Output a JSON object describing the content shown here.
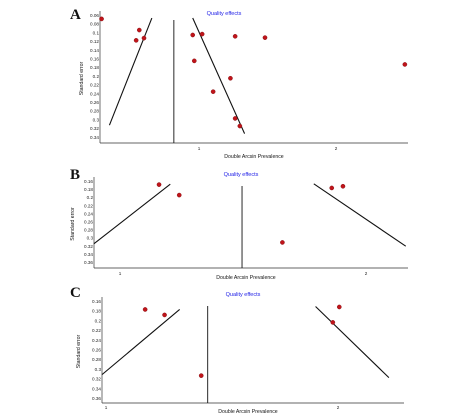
{
  "chart_data": [
    {
      "panel_label": "A",
      "type": "scatter",
      "title": "Quality effects",
      "xlabel": "Double Arcsin Prevalence",
      "ylabel": "Standard error",
      "x_ticks": [
        "1",
        "2"
      ],
      "y_ticks": [
        "0.06",
        "0.08",
        "0.1",
        "0.12",
        "0.14",
        "0.16",
        "0.18",
        "0.2",
        "0.22",
        "0.24",
        "0.26",
        "0.28",
        "0.3",
        "0.32",
        "0.34"
      ],
      "xlim": [
        0.53,
        2.49
      ],
      "ylim": [
        0.343,
        0.054
      ],
      "center_x": 1.0,
      "funnel_left": [
        [
          0.59,
          0.303
        ],
        [
          0.86,
          0.063
        ]
      ],
      "funnel_right": [
        [
          1.12,
          0.063
        ],
        [
          1.45,
          0.322
        ]
      ],
      "points": [
        {
          "x": 0.54,
          "y": 0.065
        },
        {
          "x": 0.78,
          "y": 0.09
        },
        {
          "x": 0.76,
          "y": 0.113
        },
        {
          "x": 0.81,
          "y": 0.108
        },
        {
          "x": 1.12,
          "y": 0.101
        },
        {
          "x": 1.18,
          "y": 0.099
        },
        {
          "x": 1.39,
          "y": 0.104
        },
        {
          "x": 1.58,
          "y": 0.107
        },
        {
          "x": 2.47,
          "y": 0.167
        },
        {
          "x": 1.13,
          "y": 0.159
        },
        {
          "x": 1.36,
          "y": 0.198
        },
        {
          "x": 1.25,
          "y": 0.228
        },
        {
          "x": 1.39,
          "y": 0.288
        },
        {
          "x": 1.42,
          "y": 0.305
        }
      ],
      "colors": {
        "point": "#c0141a",
        "title": "#1a1ae6",
        "line": "#111111"
      }
    },
    {
      "panel_label": "B",
      "type": "scatter",
      "title": "Quality effects",
      "xlabel": "Double Arcsin Prevalence",
      "ylabel": "Standard error",
      "x_ticks": [
        "1",
        "2"
      ],
      "y_ticks": [
        "0.16",
        "0.18",
        "0.2",
        "0.22",
        "0.24",
        "0.26",
        "0.28",
        "0.3",
        "0.32",
        "0.34",
        "0.36"
      ],
      "xlim": [
        0.88,
        2.28
      ],
      "ylim": [
        0.363,
        0.153
      ],
      "center_x": 1.54,
      "funnel_left": [
        [
          0.88,
          0.305
        ],
        [
          1.22,
          0.163
        ]
      ],
      "funnel_right": [
        [
          1.86,
          0.162
        ],
        [
          2.27,
          0.311
        ]
      ],
      "points": [
        {
          "x": 1.17,
          "y": 0.164
        },
        {
          "x": 1.26,
          "y": 0.189
        },
        {
          "x": 1.94,
          "y": 0.172
        },
        {
          "x": 1.99,
          "y": 0.168
        },
        {
          "x": 1.72,
          "y": 0.302
        }
      ],
      "colors": {
        "point": "#c0141a",
        "title": "#1a1ae6",
        "line": "#111111"
      }
    },
    {
      "panel_label": "C",
      "type": "scatter",
      "title": "Quality effects",
      "xlabel": "Double Arcsin Prevalence",
      "ylabel": "Standard error",
      "x_ticks": [
        "1",
        "2"
      ],
      "y_ticks": [
        "0.16",
        "0.18",
        "0.2",
        "0.22",
        "0.24",
        "0.26",
        "0.28",
        "0.3",
        "0.32",
        "0.34",
        "0.36"
      ],
      "xlim": [
        0.93,
        2.33
      ],
      "ylim": [
        0.36,
        0.153
      ],
      "center_x": 1.42,
      "funnel_left": [
        [
          0.93,
          0.303
        ],
        [
          1.29,
          0.172
        ]
      ],
      "funnel_right": [
        [
          1.92,
          0.166
        ],
        [
          2.26,
          0.309
        ]
      ],
      "points": [
        {
          "x": 1.13,
          "y": 0.172
        },
        {
          "x": 1.22,
          "y": 0.183
        },
        {
          "x": 1.39,
          "y": 0.305
        },
        {
          "x": 2.03,
          "y": 0.167
        },
        {
          "x": 2.0,
          "y": 0.198
        }
      ],
      "colors": {
        "point": "#c0141a",
        "title": "#1a1ae6",
        "line": "#111111"
      }
    }
  ]
}
